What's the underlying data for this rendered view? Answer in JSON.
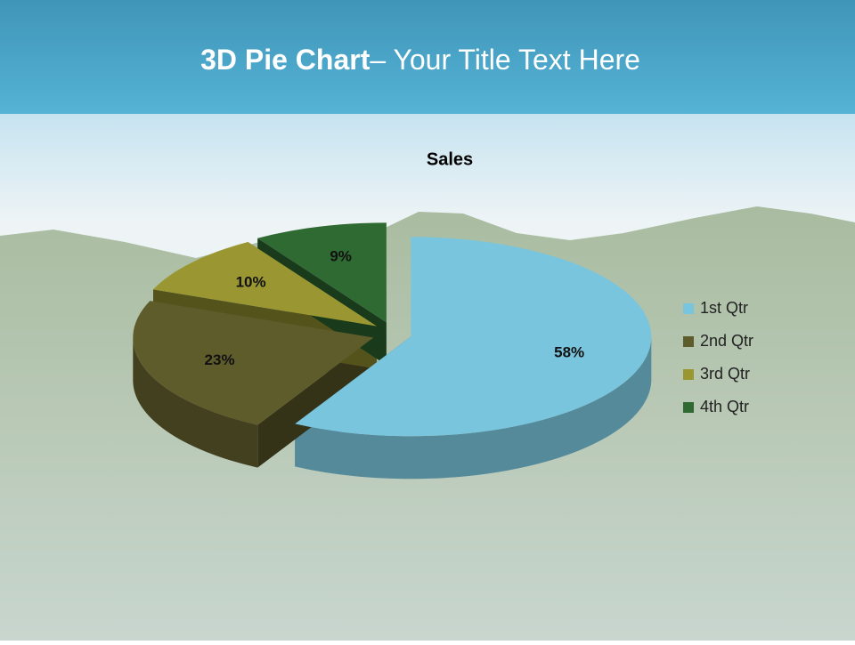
{
  "slide": {
    "title_bold": "3D Pie Chart",
    "title_rest": "– Your Title Text Here"
  },
  "chart_data": {
    "type": "pie",
    "title": "Sales",
    "categories": [
      "1st Qtr",
      "2nd Qtr",
      "3rd Qtr",
      "4th Qtr"
    ],
    "values": [
      58,
      23,
      10,
      9
    ],
    "value_labels": [
      "58%",
      "23%",
      "10%",
      "9%"
    ],
    "colors": [
      "#7ac5de",
      "#5f5c2c",
      "#9a9733",
      "#2f6a33"
    ],
    "legend": "right"
  }
}
